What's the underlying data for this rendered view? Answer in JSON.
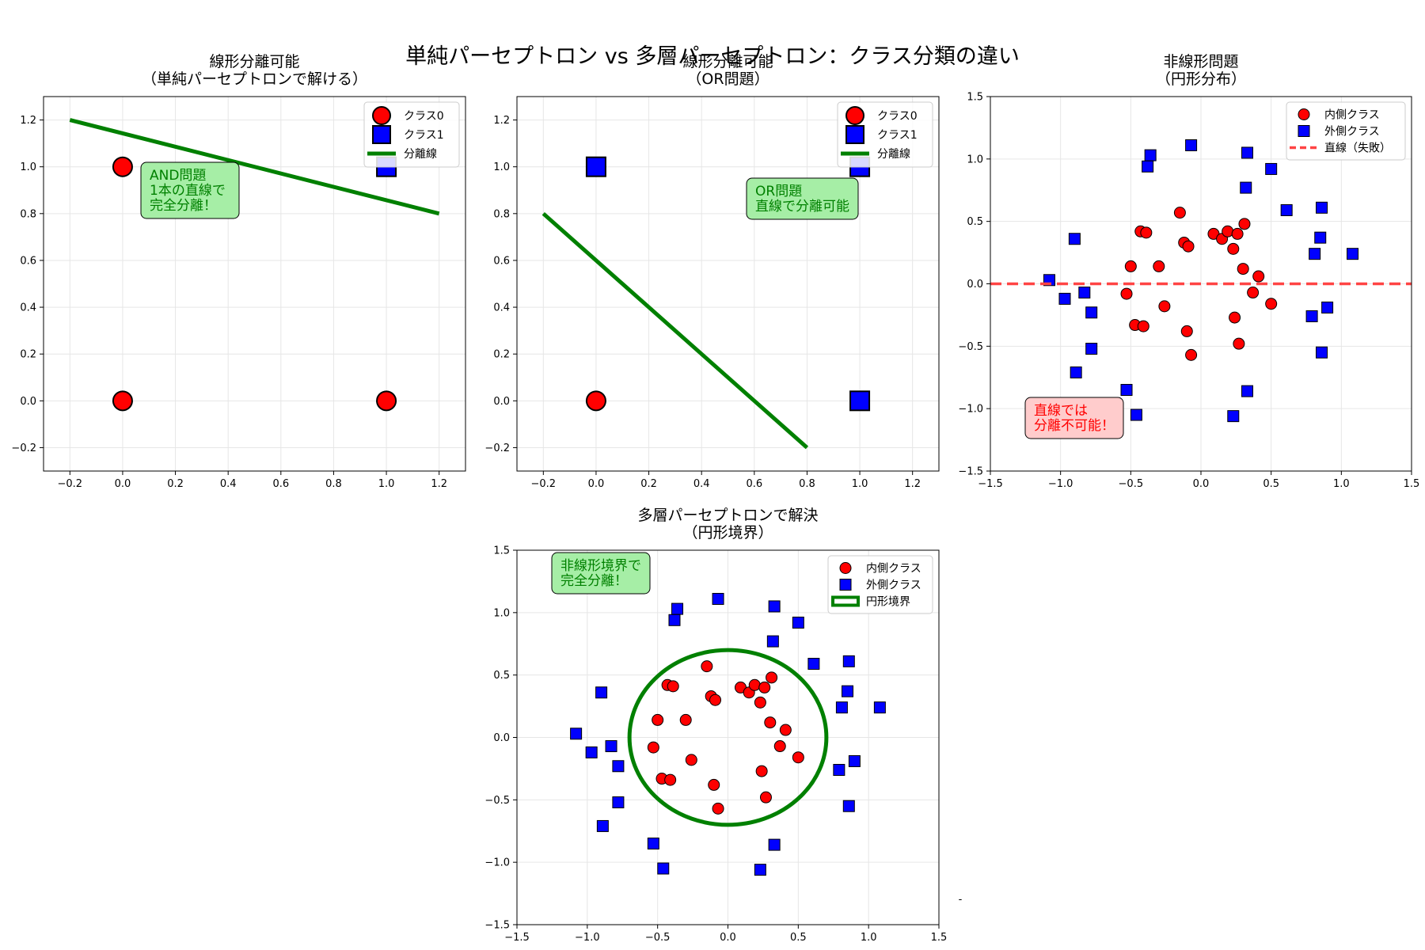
{
  "figure": {
    "suptitle": "単純パーセプトロン vs 多層パーセプトロン：クラス分類の違い",
    "stray_mark": "-"
  },
  "colors": {
    "class0": "#ff0000",
    "class1": "#0000ff",
    "line": "#008000",
    "fail_line": "#ff4444",
    "good_box": "#a6eea6",
    "bad_box": "#ffcccc",
    "grid": "#e6e6e6"
  },
  "chart_data": [
    {
      "id": "and",
      "type": "scatter",
      "title_lines": [
        "線形分離可能",
        "（単純パーセプトロンで解ける）"
      ],
      "xlim": [
        -0.3,
        1.3
      ],
      "ylim": [
        -0.3,
        1.3
      ],
      "xticks": [
        -0.2,
        0.0,
        0.2,
        0.4,
        0.6,
        0.8,
        1.0,
        1.2
      ],
      "yticks": [
        -0.2,
        0.0,
        0.2,
        0.4,
        0.6,
        0.8,
        1.0,
        1.2
      ],
      "tick_decimals": 1,
      "grid": true,
      "series": [
        {
          "name": "クラス0",
          "marker": "circle",
          "points": [
            [
              0,
              0
            ],
            [
              0,
              1
            ],
            [
              1,
              0
            ]
          ]
        },
        {
          "name": "クラス1",
          "marker": "square",
          "points": [
            [
              1,
              1
            ]
          ]
        }
      ],
      "lines": [
        {
          "name": "分離線",
          "x": [
            -0.2,
            1.2
          ],
          "y": [
            1.2,
            0.8
          ],
          "style": "solid"
        }
      ],
      "legend": {
        "position": "top-right"
      },
      "annotation": {
        "lines": [
          "AND問題",
          "1本の直線で",
          "完全分離！"
        ],
        "style": "good"
      }
    },
    {
      "id": "or",
      "type": "scatter",
      "title_lines": [
        "線形分離可能",
        "（OR問題）"
      ],
      "xlim": [
        -0.3,
        1.3
      ],
      "ylim": [
        -0.3,
        1.3
      ],
      "xticks": [
        -0.2,
        0.0,
        0.2,
        0.4,
        0.6,
        0.8,
        1.0,
        1.2
      ],
      "yticks": [
        -0.2,
        0.0,
        0.2,
        0.4,
        0.6,
        0.8,
        1.0,
        1.2
      ],
      "tick_decimals": 1,
      "grid": true,
      "series": [
        {
          "name": "クラス0",
          "marker": "circle",
          "points": [
            [
              0,
              0
            ]
          ]
        },
        {
          "name": "クラス1",
          "marker": "square",
          "points": [
            [
              0,
              1
            ],
            [
              1,
              0
            ],
            [
              1,
              1
            ]
          ]
        }
      ],
      "lines": [
        {
          "name": "分離線",
          "x": [
            -0.2,
            0.8
          ],
          "y": [
            0.8,
            -0.2
          ],
          "style": "solid"
        }
      ],
      "legend": {
        "position": "top-right"
      },
      "annotation": {
        "lines": [
          "OR問題",
          "直線で分離可能"
        ],
        "style": "good"
      }
    },
    {
      "id": "circle-fail",
      "type": "scatter",
      "title_lines": [
        "非線形問題",
        "（円形分布）"
      ],
      "xlim": [
        -1.5,
        1.5
      ],
      "ylim": [
        -1.5,
        1.5
      ],
      "xticks": [
        -1.5,
        -1.0,
        -0.5,
        0.0,
        0.5,
        1.0,
        1.5
      ],
      "yticks": [
        -1.5,
        -1.0,
        -0.5,
        0.0,
        0.5,
        1.0,
        1.5
      ],
      "tick_decimals": 1,
      "grid": true,
      "series": [
        {
          "name": "内側クラス",
          "marker": "circle",
          "points": [
            [
              -0.15,
              0.57
            ],
            [
              -0.43,
              0.42
            ],
            [
              -0.39,
              0.41
            ],
            [
              -0.12,
              0.33
            ],
            [
              -0.09,
              0.3
            ],
            [
              0.09,
              0.4
            ],
            [
              0.15,
              0.36
            ],
            [
              0.19,
              0.42
            ],
            [
              0.26,
              0.4
            ],
            [
              0.31,
              0.48
            ],
            [
              0.23,
              0.28
            ],
            [
              -0.5,
              0.14
            ],
            [
              -0.3,
              0.14
            ],
            [
              0.3,
              0.12
            ],
            [
              0.41,
              0.06
            ],
            [
              -0.53,
              -0.08
            ],
            [
              0.37,
              -0.07
            ],
            [
              -0.26,
              -0.18
            ],
            [
              0.5,
              -0.16
            ],
            [
              -0.47,
              -0.33
            ],
            [
              -0.41,
              -0.34
            ],
            [
              0.24,
              -0.27
            ],
            [
              -0.1,
              -0.38
            ],
            [
              0.27,
              -0.48
            ],
            [
              -0.07,
              -0.57
            ]
          ]
        },
        {
          "name": "外側クラス",
          "marker": "square",
          "points": [
            [
              -0.07,
              1.11
            ],
            [
              -0.36,
              1.03
            ],
            [
              -0.38,
              0.94
            ],
            [
              0.33,
              1.05
            ],
            [
              0.5,
              0.92
            ],
            [
              0.32,
              0.77
            ],
            [
              0.61,
              0.59
            ],
            [
              0.86,
              0.61
            ],
            [
              -0.9,
              0.36
            ],
            [
              0.85,
              0.37
            ],
            [
              0.81,
              0.24
            ],
            [
              1.08,
              0.24
            ],
            [
              -1.08,
              0.03
            ],
            [
              -0.97,
              -0.12
            ],
            [
              -0.83,
              -0.07
            ],
            [
              -0.78,
              -0.23
            ],
            [
              0.9,
              -0.19
            ],
            [
              0.79,
              -0.26
            ],
            [
              -0.78,
              -0.52
            ],
            [
              0.86,
              -0.55
            ],
            [
              -0.89,
              -0.71
            ],
            [
              -0.53,
              -0.85
            ],
            [
              0.33,
              -0.86
            ],
            [
              -0.46,
              -1.05
            ],
            [
              0.23,
              -1.06
            ]
          ]
        }
      ],
      "lines": [
        {
          "name": "直線（失敗）",
          "x": [
            -1.5,
            1.5
          ],
          "y": [
            0,
            0
          ],
          "style": "dashed"
        }
      ],
      "legend": {
        "position": "top-right"
      },
      "annotation": {
        "lines": [
          "直線では",
          "分離不可能！"
        ],
        "style": "bad"
      }
    },
    {
      "id": "mlp",
      "type": "scatter",
      "title_lines": [
        "多層パーセプトロンで解決",
        "（円形境界）"
      ],
      "xlim": [
        -1.5,
        1.5
      ],
      "ylim": [
        -1.5,
        1.5
      ],
      "xticks": [
        -1.5,
        -1.0,
        -0.5,
        0.0,
        0.5,
        1.0,
        1.5
      ],
      "yticks": [
        -1.5,
        -1.0,
        -0.5,
        0.0,
        0.5,
        1.0,
        1.5
      ],
      "tick_decimals": 1,
      "grid": true,
      "series": [
        {
          "name": "内側クラス",
          "marker": "circle",
          "points": [
            [
              -0.15,
              0.57
            ],
            [
              -0.43,
              0.42
            ],
            [
              -0.39,
              0.41
            ],
            [
              -0.12,
              0.33
            ],
            [
              -0.09,
              0.3
            ],
            [
              0.09,
              0.4
            ],
            [
              0.15,
              0.36
            ],
            [
              0.19,
              0.42
            ],
            [
              0.26,
              0.4
            ],
            [
              0.31,
              0.48
            ],
            [
              0.23,
              0.28
            ],
            [
              -0.5,
              0.14
            ],
            [
              -0.3,
              0.14
            ],
            [
              0.3,
              0.12
            ],
            [
              0.41,
              0.06
            ],
            [
              -0.53,
              -0.08
            ],
            [
              0.37,
              -0.07
            ],
            [
              -0.26,
              -0.18
            ],
            [
              0.5,
              -0.16
            ],
            [
              -0.47,
              -0.33
            ],
            [
              -0.41,
              -0.34
            ],
            [
              0.24,
              -0.27
            ],
            [
              -0.1,
              -0.38
            ],
            [
              0.27,
              -0.48
            ],
            [
              -0.07,
              -0.57
            ]
          ]
        },
        {
          "name": "外側クラス",
          "marker": "square",
          "points": [
            [
              -0.07,
              1.11
            ],
            [
              -0.36,
              1.03
            ],
            [
              -0.38,
              0.94
            ],
            [
              0.33,
              1.05
            ],
            [
              0.5,
              0.92
            ],
            [
              0.32,
              0.77
            ],
            [
              0.61,
              0.59
            ],
            [
              0.86,
              0.61
            ],
            [
              -0.9,
              0.36
            ],
            [
              0.85,
              0.37
            ],
            [
              0.81,
              0.24
            ],
            [
              1.08,
              0.24
            ],
            [
              -1.08,
              0.03
            ],
            [
              -0.97,
              -0.12
            ],
            [
              -0.83,
              -0.07
            ],
            [
              -0.78,
              -0.23
            ],
            [
              0.9,
              -0.19
            ],
            [
              0.79,
              -0.26
            ],
            [
              -0.78,
              -0.52
            ],
            [
              0.86,
              -0.55
            ],
            [
              -0.89,
              -0.71
            ],
            [
              -0.53,
              -0.85
            ],
            [
              0.33,
              -0.86
            ],
            [
              -0.46,
              -1.05
            ],
            [
              0.23,
              -1.06
            ]
          ]
        }
      ],
      "circle_boundary": {
        "name": "円形境界",
        "cx": 0,
        "cy": 0,
        "r": 0.7
      },
      "legend": {
        "position": "top-right"
      },
      "annotation": {
        "lines": [
          "非線形境界で",
          "完全分離！"
        ],
        "style": "good"
      }
    }
  ]
}
